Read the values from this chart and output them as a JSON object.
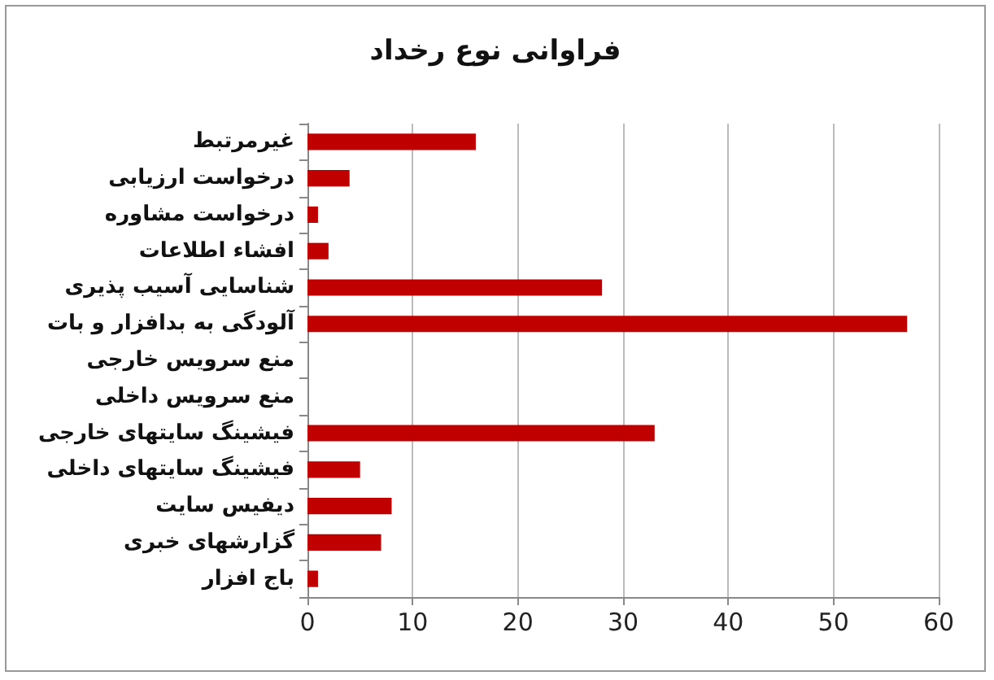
{
  "chart_data": {
    "type": "bar",
    "orientation": "horizontal",
    "title": "فراوانی نوع رخداد",
    "categories": [
      "غیرمرتبط",
      "درخواست ارزیابی",
      "درخواست مشاوره",
      "افشاء اطلاعات",
      "شناسایی آسیب پذیری",
      "آلودگی به بدافزار و بات",
      "منع سرویس خارجی",
      "منع سرویس داخلی",
      "فیشینگ سایتهای خارجی",
      "فیشینگ سایتهای داخلی",
      "دیفیس سایت",
      "گزارشهای خبری",
      "باج افزار"
    ],
    "values": [
      16,
      4,
      1,
      2,
      28,
      57,
      0,
      0,
      33,
      5,
      8,
      7,
      1
    ],
    "color": "#c00000",
    "xlim": [
      0,
      60
    ],
    "xticks": [
      0,
      10,
      20,
      30,
      40,
      50,
      60
    ],
    "grid": "x"
  }
}
